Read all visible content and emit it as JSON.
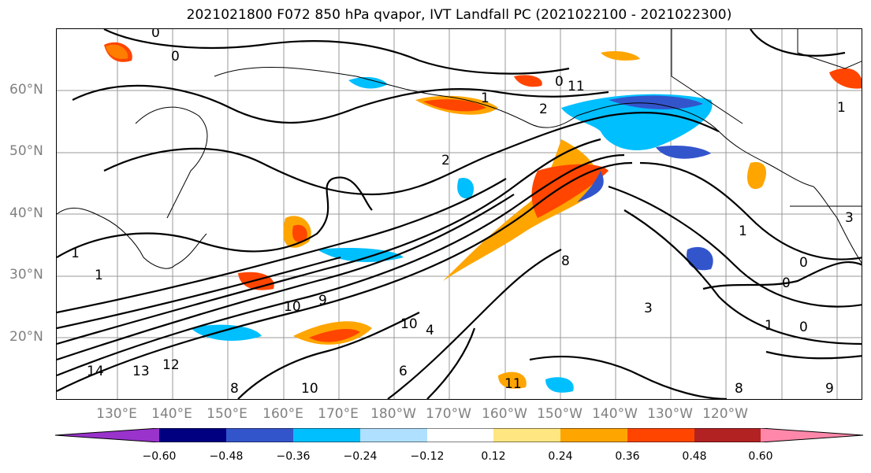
{
  "title": "2021021800 F072 850 hPa qvapor, IVT Landfall PC (2021022100 - 2021022300)",
  "lat_labels": [
    "60°N",
    "50°N",
    "40°N",
    "30°N",
    "20°N"
  ],
  "lon_labels": [
    "130°E",
    "140°E",
    "150°E",
    "160°E",
    "170°E",
    "180°W",
    "170°W",
    "160°W",
    "150°W",
    "140°W",
    "130°W",
    "120°W"
  ],
  "colorbar": {
    "ticks": [
      "−0.60",
      "−0.48",
      "−0.36",
      "−0.24",
      "−0.12",
      "0.12",
      "0.24",
      "0.36",
      "0.48",
      "0.60"
    ],
    "colors": [
      "#9933cc",
      "#000080",
      "#3355cc",
      "#00bfff",
      "#b0e0ff",
      "#ffffff",
      "#ffe680",
      "#ffa500",
      "#ff4500",
      "#b22222",
      "#ff88aa"
    ]
  },
  "contour_labels": [
    "0",
    "0",
    "0",
    "1",
    "2",
    "2",
    "1",
    "1",
    "3",
    "1",
    "0",
    "0",
    "1",
    "0",
    "1",
    "10",
    "9",
    "8",
    "10",
    "14",
    "13",
    "12",
    "11",
    "4",
    "6",
    "10",
    "11",
    "8",
    "9",
    "3",
    "8"
  ]
}
